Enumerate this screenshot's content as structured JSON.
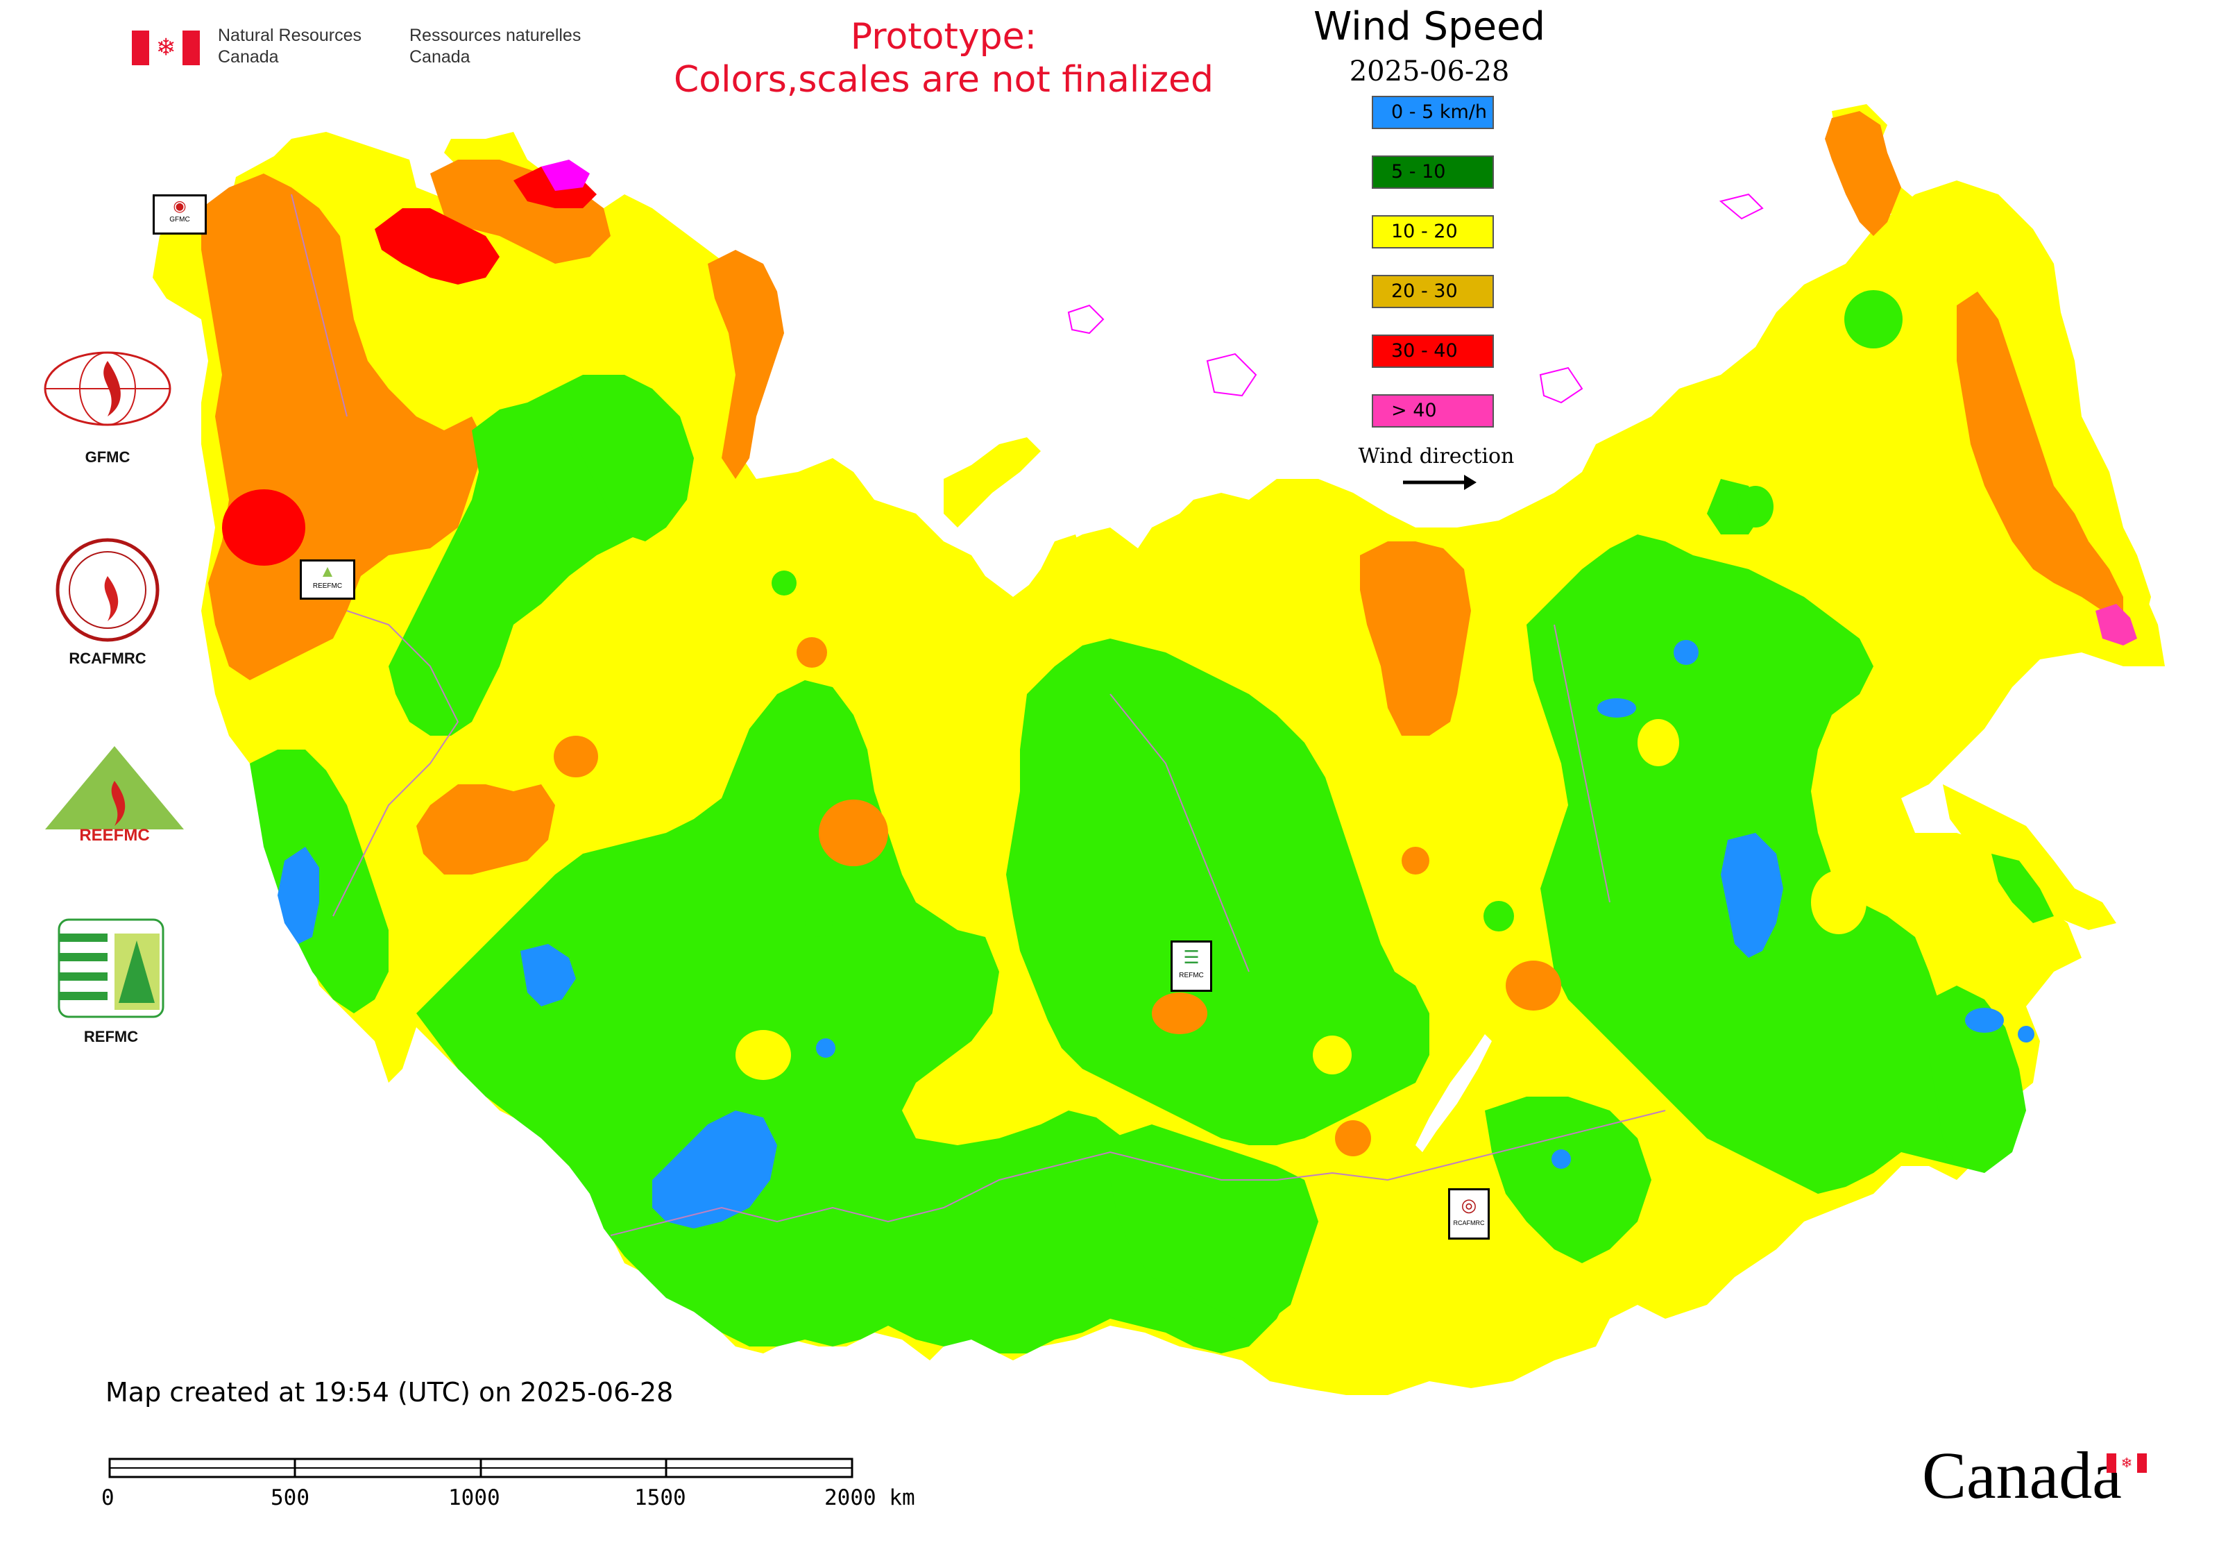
{
  "header": {
    "agency_en": "Natural Resources Canada",
    "agency_fr": "Ressources naturelles Canada",
    "prototype_line1": "Prototype:",
    "prototype_line2": "Colors,scales are not finalized"
  },
  "legend": {
    "title": "Wind Speed",
    "date": "2025-06-28",
    "classes": [
      {
        "label": "0 - 5 km/h",
        "color": "#1e90ff"
      },
      {
        "label": "5 - 10",
        "color": "#008000"
      },
      {
        "label": "10 - 20",
        "color": "#ffff00"
      },
      {
        "label": "20 - 30",
        "color": "#e0b400"
      },
      {
        "label": "30 - 40",
        "color": "#ff0000"
      },
      {
        "label": "> 40",
        "color": "#ff3cb4"
      }
    ],
    "wind_direction_label": "Wind direction"
  },
  "partners": [
    {
      "name": "GFMC",
      "icon": "gfmc-logo-icon"
    },
    {
      "name": "RCAFMRC",
      "icon": "rcafmrc-logo-icon"
    },
    {
      "name": "REEFMC",
      "icon": "reefmc-logo-icon"
    },
    {
      "name": "REFMC",
      "icon": "refmc-logo-icon"
    }
  ],
  "map_marker_labels": {
    "gfmc": "GFMC",
    "reefmc": "REEFMC",
    "refmc": "REFMC",
    "rcafmrc": "RCAFMRC"
  },
  "map_colors": {
    "green": "#33ee00",
    "yellow": "#ffff00",
    "orange": "#ff8c00",
    "red": "#ff0000",
    "blue": "#1e90ff",
    "magenta": "#ff00ff",
    "border": "#c080c0"
  },
  "footer": {
    "created": "Map created at 19:54 (UTC) on 2025-06-28",
    "scale_ticks": [
      "0",
      "500",
      "1000",
      "1500",
      "2000 km"
    ],
    "wordmark": "Canada"
  }
}
